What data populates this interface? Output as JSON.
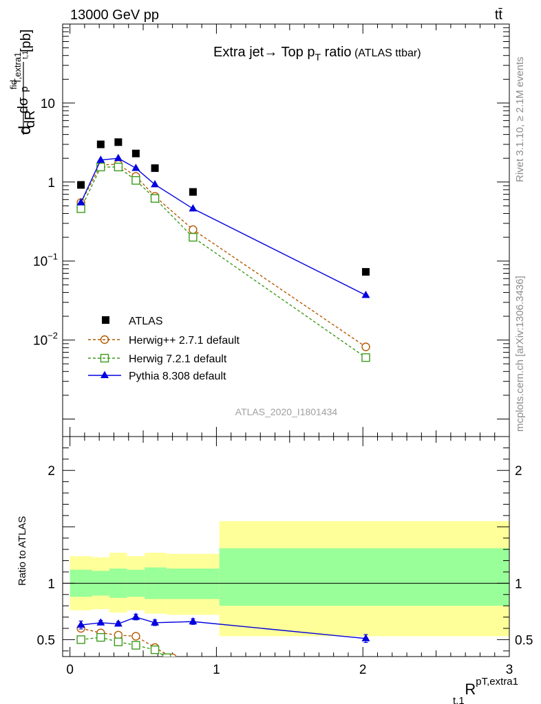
{
  "header": {
    "energy_label": "13000 GeV pp",
    "process_label": "tt̄"
  },
  "side_labels": {
    "rivet": "Rivet 3.1.10, ≥ 2.1M events",
    "mcplots": "mcplots.cern.ch [arXiv:1306.3436]"
  },
  "colors": {
    "atlas": "#000000",
    "herwigpp": "#b35900",
    "herwig7": "#3a9a1a",
    "pythia": "#0000e0",
    "band_outer": "#ffff99",
    "band_inner": "#99ff99"
  },
  "chart_data": [
    {
      "type": "scatter",
      "panel": "main",
      "title": "Extra jet→ Top p",
      "title_sub": "T",
      "title_tail": " ratio",
      "title_small": " (ATLAS ttbar)",
      "ylabel_parts": [
        "d",
        "dσ",
        "fid",
        "p",
        "T,extra1",
        "t,1",
        "dR",
        "[pb]"
      ],
      "yscale": "log",
      "ylim": [
        0.0006,
        100
      ],
      "xlim": [
        -0.05,
        3.0
      ],
      "yticks": [
        {
          "value": 10,
          "label": "10"
        },
        {
          "value": 1,
          "label": "1"
        },
        {
          "value": 0.1,
          "label": "10",
          "exp": "−1"
        },
        {
          "value": 0.01,
          "label": "10",
          "exp": "−2"
        }
      ],
      "watermark": "ATLAS_2020_I1801434",
      "legend_position": "lower-left",
      "series": [
        {
          "name": "ATLAS",
          "key": "atlas",
          "marker": "square-filled",
          "line": "none",
          "x": [
            0.075,
            0.21,
            0.33,
            0.45,
            0.58,
            0.84,
            2.02
          ],
          "y": [
            0.92,
            3.0,
            3.2,
            2.3,
            1.5,
            0.75,
            0.073
          ]
        },
        {
          "name": "Herwig++ 2.7.1 default",
          "key": "herwigpp",
          "marker": "circle-open",
          "line": "dashed",
          "x": [
            0.075,
            0.21,
            0.33,
            0.45,
            0.58,
            0.84,
            2.02
          ],
          "y": [
            0.55,
            1.65,
            1.68,
            1.18,
            0.66,
            0.25,
            0.0082
          ]
        },
        {
          "name": "Herwig 7.2.1 default",
          "key": "herwig7",
          "marker": "square-open",
          "line": "dashed",
          "x": [
            0.075,
            0.21,
            0.33,
            0.45,
            0.58,
            0.84,
            2.02
          ],
          "y": [
            0.46,
            1.55,
            1.55,
            1.05,
            0.62,
            0.2,
            0.006
          ]
        },
        {
          "name": "Pythia 8.308 default",
          "key": "pythia",
          "marker": "triangle-filled",
          "line": "solid",
          "x": [
            0.075,
            0.21,
            0.33,
            0.45,
            0.58,
            0.84,
            2.02
          ],
          "y": [
            0.55,
            1.9,
            2.0,
            1.5,
            0.93,
            0.46,
            0.037
          ]
        }
      ]
    },
    {
      "type": "scatter",
      "panel": "ratio",
      "ylabel": "Ratio to ATLAS",
      "xlabel": "R",
      "xlabel_sup": "pT,extra1",
      "xlabel_sub": "t,1",
      "yscale": "linear",
      "ylim": [
        0.35,
        2.3
      ],
      "xlim": [
        -0.05,
        3.0
      ],
      "xticks": [
        0,
        1,
        2,
        3
      ],
      "yticks": [
        {
          "value": 0.5,
          "label": "0.5"
        },
        {
          "value": 1,
          "label": "1"
        },
        {
          "value": 2,
          "label": "2"
        }
      ],
      "bands": [
        {
          "x0": 0.0,
          "x1": 0.15,
          "outer": [
            0.76,
            1.24
          ],
          "inner": [
            0.88,
            1.12
          ]
        },
        {
          "x0": 0.15,
          "x1": 0.27,
          "outer": [
            0.77,
            1.23
          ],
          "inner": [
            0.89,
            1.11
          ]
        },
        {
          "x0": 0.27,
          "x1": 0.39,
          "outer": [
            0.74,
            1.27
          ],
          "inner": [
            0.87,
            1.13
          ]
        },
        {
          "x0": 0.39,
          "x1": 0.51,
          "outer": [
            0.76,
            1.24
          ],
          "inner": [
            0.88,
            1.12
          ]
        },
        {
          "x0": 0.51,
          "x1": 0.66,
          "outer": [
            0.73,
            1.27
          ],
          "inner": [
            0.86,
            1.14
          ]
        },
        {
          "x0": 0.66,
          "x1": 1.02,
          "outer": [
            0.72,
            1.26
          ],
          "inner": [
            0.86,
            1.13
          ]
        },
        {
          "x0": 1.02,
          "x1": 3.0,
          "outer": [
            0.53,
            1.55
          ],
          "inner": [
            0.8,
            1.31
          ]
        }
      ],
      "series": [
        {
          "name": "Herwig++ 2.7.1 default",
          "key": "herwigpp",
          "marker": "circle-open",
          "line": "dashed",
          "x": [
            0.075,
            0.21,
            0.33,
            0.45,
            0.58,
            0.7
          ],
          "y": [
            0.6,
            0.56,
            0.54,
            0.53,
            0.43,
            0.34
          ],
          "err": [
            0.025,
            0.015,
            0.015,
            0.02,
            0.02,
            0.0
          ]
        },
        {
          "name": "Herwig 7.2.1 default",
          "key": "herwig7",
          "marker": "square-open",
          "line": "dashed",
          "x": [
            0.075,
            0.21,
            0.33,
            0.45,
            0.58,
            0.66
          ],
          "y": [
            0.5,
            0.52,
            0.48,
            0.45,
            0.41,
            0.34
          ],
          "err": [
            0.025,
            0.015,
            0.015,
            0.015,
            0.02,
            0.0
          ]
        },
        {
          "name": "Pythia 8.308 default",
          "key": "pythia",
          "marker": "triangle-filled",
          "line": "solid",
          "x": [
            0.075,
            0.21,
            0.33,
            0.45,
            0.58,
            0.84,
            2.02
          ],
          "y": [
            0.63,
            0.65,
            0.64,
            0.7,
            0.65,
            0.66,
            0.51
          ],
          "err": [
            0.035,
            0.02,
            0.02,
            0.025,
            0.025,
            0.025,
            0.035
          ]
        }
      ]
    }
  ]
}
